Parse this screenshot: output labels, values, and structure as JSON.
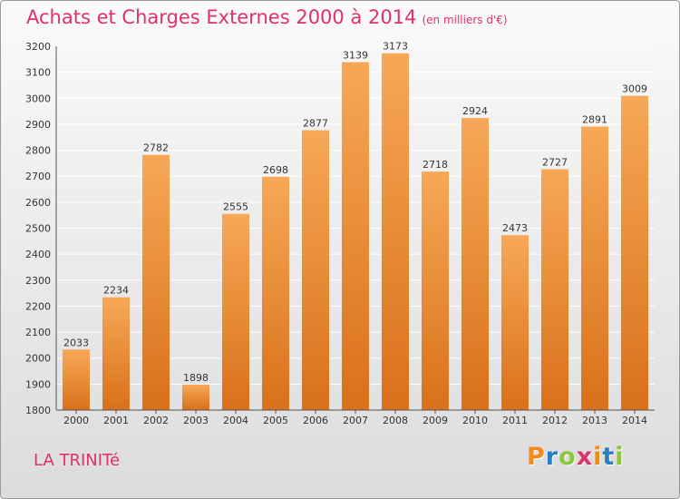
{
  "header": {
    "title": "Achats et Charges Externes 2000 à 2014",
    "subtitle": "(en milliers d'€)"
  },
  "footer": {
    "place": "LA TRINITé",
    "logo": "Proxiti",
    "logo_colors": [
      "#f28c1e",
      "#2b7fc1",
      "#8dc63f",
      "#e0306a",
      "#f28c1e",
      "#2b7fc1",
      "#8dc63f"
    ]
  },
  "colors": {
    "bar_light": "#f7a857",
    "bar_dark": "#d9701a",
    "grid": "#ffffff",
    "text": "#333333"
  },
  "chart_data": {
    "type": "bar",
    "title": "Achats et Charges Externes 2000 à 2014",
    "subtitle": "(en milliers d'€)",
    "categories": [
      "2000",
      "2001",
      "2002",
      "2003",
      "2004",
      "2005",
      "2006",
      "2007",
      "2008",
      "2009",
      "2010",
      "2011",
      "2012",
      "2013",
      "2014"
    ],
    "values": [
      2033,
      2234,
      2782,
      1898,
      2555,
      2698,
      2877,
      3139,
      3173,
      2718,
      2924,
      2473,
      2727,
      2891,
      3009
    ],
    "data_labels": [
      "2033",
      "2234",
      "2782",
      "1898",
      "2555",
      "2698",
      "2877",
      "3139",
      "3173",
      "2718",
      "2924",
      "2473",
      "2727",
      "2891",
      "3009"
    ],
    "xlabel": "",
    "ylabel": "",
    "ylim": [
      1800,
      3200
    ],
    "yticks": [
      1800,
      1900,
      2000,
      2100,
      2200,
      2300,
      2400,
      2500,
      2600,
      2700,
      2800,
      2900,
      3000,
      3100,
      3200
    ],
    "grid": true
  }
}
